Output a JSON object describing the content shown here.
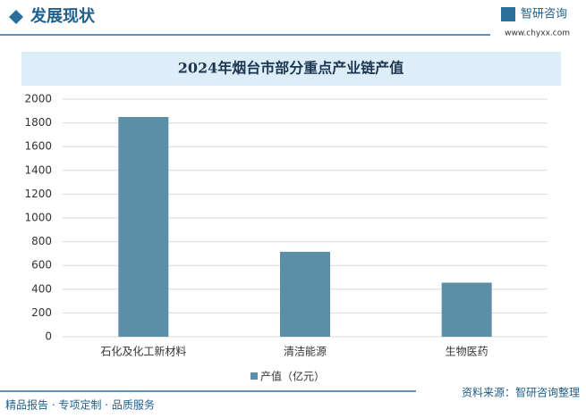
{
  "header": {
    "title": "发展现状",
    "logo": "智研咨询",
    "website": "www.chyxx.com"
  },
  "footer": {
    "slogan": "精品报告 · 专项定制 · 品质服务",
    "source": "资料来源：智研咨询整理"
  },
  "chart_data": {
    "type": "bar",
    "title": "2024年烟台市部分重点产业链产值",
    "categories": [
      "石化及化工新材料",
      "清洁能源",
      "生物医药"
    ],
    "series": [
      {
        "name": "产值（亿元）",
        "color": "#5a8fa7",
        "values": [
          1850,
          715,
          455
        ]
      }
    ],
    "ylim": [
      0,
      2000
    ],
    "yticks": [
      0,
      200,
      400,
      600,
      800,
      1000,
      1200,
      1400,
      1600,
      1800,
      2000
    ],
    "grid": true,
    "legend": "bottom"
  }
}
